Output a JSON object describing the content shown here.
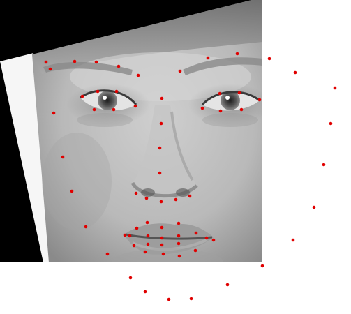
{
  "image": {
    "subject": "face-photo-with-landmarks",
    "tone": "grayscale",
    "landmark_color": "#e00000",
    "background_color": "#ffffff",
    "border_color": "#000000"
  },
  "landmarks": {
    "count": 68,
    "groups": [
      "jaw",
      "right-eyebrow",
      "left-eyebrow",
      "nose-bridge",
      "nose-tip",
      "right-eye",
      "left-eye",
      "outer-lip",
      "inner-lip"
    ]
  }
}
